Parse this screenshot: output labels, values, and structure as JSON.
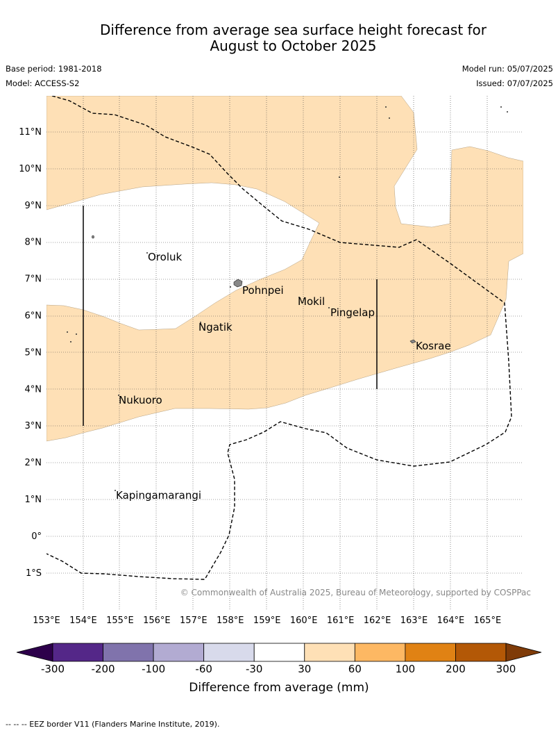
{
  "title_line1": "Difference from average sea surface height forecast for",
  "title_line2": "August to October 2025",
  "base_period": "Base period: 1981-2018",
  "model": "Model: ACCESS-S2",
  "model_run": "Model run: 05/07/2025",
  "issued": "Issued: 07/07/2025",
  "lat_labels": [
    "11°N",
    "10°N",
    "9°N",
    "8°N",
    "7°N",
    "6°N",
    "5°N",
    "4°N",
    "3°N",
    "2°N",
    "1°N",
    "0°",
    "1°S"
  ],
  "lon_labels": [
    "153°E",
    "154°E",
    "155°E",
    "156°E",
    "157°E",
    "158°E",
    "159°E",
    "160°E",
    "161°E",
    "162°E",
    "163°E",
    "164°E",
    "165°E"
  ],
  "places": {
    "oroluk": "Oroluk",
    "pohnpei": "Pohnpei",
    "mokil": "Mokil",
    "pingelap": "Pingelap",
    "ngatik": "Ngatik",
    "kosrae": "Kosrae",
    "nukuoro": "Nukuoro",
    "kapingamarangi": "Kapingamarangi"
  },
  "copyright": "© Commonwealth of Australia 2025, Bureau of Meteorology, supported by COSPPac",
  "colorbar": {
    "title": "Difference from average (mm)",
    "ticks": [
      "-300",
      "-200",
      "-100",
      "-60",
      "-30",
      "30",
      "60",
      "100",
      "200",
      "300"
    ],
    "colors": [
      "#2d004b",
      "#542788",
      "#8073ac",
      "#b2abd2",
      "#d8daeb",
      "#ffffff",
      "#fee0b6",
      "#fdb863",
      "#e08214",
      "#b35806",
      "#7f3b08"
    ]
  },
  "legend_note": "--  --  -- EEZ border V11 (Flanders Marine Institute, 2019)."
}
